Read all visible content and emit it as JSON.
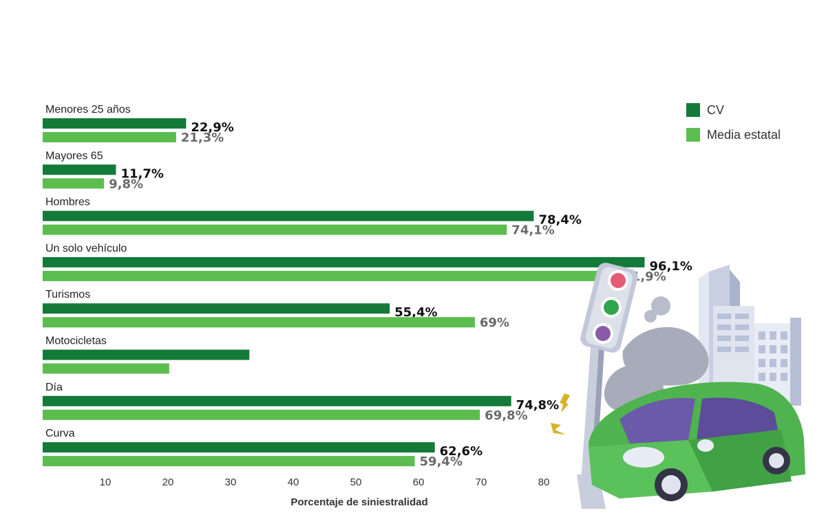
{
  "colors": {
    "cv": "#137a3a",
    "average": "#5cbd4f"
  },
  "illustration": {
    "name": "car-crash-traffic-light-illustration"
  },
  "chart_data": {
    "type": "bar",
    "orientation": "horizontal",
    "title": "",
    "xlabel": "Porcentaje de siniestralidad",
    "ylabel": "",
    "xlim": [
      0,
      100
    ],
    "xticks": [
      10,
      20,
      30,
      40,
      50,
      60,
      70,
      80
    ],
    "grid": false,
    "legend_position": "top-right",
    "categories": [
      "Menores 25 años",
      "Mayores 65",
      "Hombres",
      "Un solo vehículo",
      "Turismos",
      "Motocicletas",
      "Día",
      "Curva"
    ],
    "series": [
      {
        "name": "CV",
        "values": [
          22.9,
          11.7,
          78.4,
          96.1,
          55.4,
          33.0,
          74.8,
          62.6
        ],
        "labels": [
          "22,9%",
          "11,7%",
          "78,4%",
          "96,1%",
          "55,4%",
          "",
          "74,8%",
          "62,6%"
        ]
      },
      {
        "name": "Media estatal",
        "values": [
          21.3,
          9.8,
          74.1,
          91.9,
          69.0,
          20.2,
          69.8,
          59.4
        ],
        "labels": [
          "21,3%",
          "9,8%",
          "74,1%",
          "91,9%",
          "69%",
          "",
          "69,8%",
          "59,4%"
        ]
      }
    ]
  }
}
